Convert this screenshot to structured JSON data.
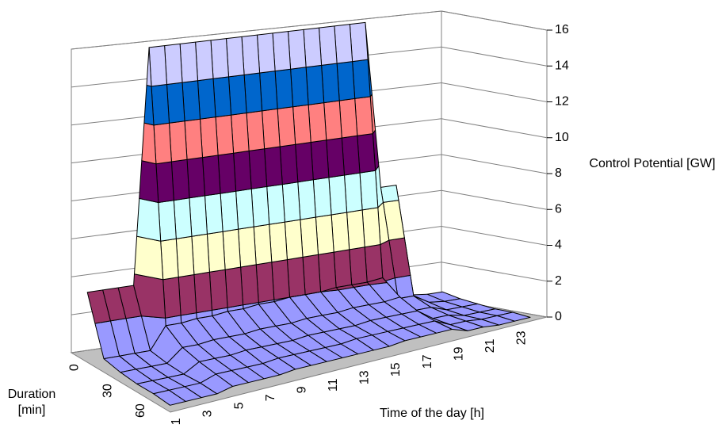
{
  "chart_data": {
    "type": "surface",
    "x_label": "Time of the day [h]",
    "depth_label": "Duration [min]",
    "z_label": "Control Potential [GW]",
    "categories": [
      "1",
      null,
      "3",
      null,
      "5",
      null,
      "7",
      null,
      "9",
      null,
      "11",
      null,
      "13",
      null,
      "15",
      null,
      "17",
      null,
      "19",
      null,
      "21",
      null,
      "23",
      null
    ],
    "depth_categories": [
      "0",
      null,
      "30",
      null,
      "60",
      null
    ],
    "z": [
      [
        3.4,
        3.4,
        3.4,
        3.4,
        16,
        16,
        16,
        16,
        16,
        16,
        16,
        16,
        16,
        16,
        16,
        16,
        16,
        16,
        16,
        6.8,
        6.8,
        0.6,
        0.5,
        0.5
      ],
      [
        0.4,
        0.4,
        0.4,
        0.4,
        1.6,
        1.6,
        1.7,
        1.7,
        1.8,
        1.8,
        1.9,
        1.9,
        2,
        2,
        2,
        2.1,
        2.1,
        2.1,
        2.2,
        0.9,
        0.9,
        0.4,
        0.3,
        0.3
      ],
      [
        0.2,
        0.2,
        0.2,
        0.2,
        0.9,
        0.9,
        1,
        1,
        1,
        1.1,
        1.1,
        1.1,
        1.2,
        1.2,
        1.2,
        1.3,
        1.3,
        1.3,
        1.4,
        0.5,
        0.5,
        0.2,
        0.2,
        0.2
      ],
      [
        0.1,
        0.1,
        0.1,
        0.1,
        0.6,
        0.6,
        0.6,
        0.7,
        0.7,
        0.7,
        0.7,
        0.8,
        0.8,
        0.8,
        0.8,
        0.9,
        0.9,
        0.9,
        0.9,
        0.3,
        0.3,
        0.1,
        0.1,
        0.1
      ],
      [
        0.1,
        0.1,
        0.1,
        0.1,
        0.4,
        0.4,
        0.4,
        0.4,
        0.5,
        0.5,
        0.5,
        0.5,
        0.5,
        0.6,
        0.6,
        0.6,
        0.6,
        0.6,
        0.6,
        0.2,
        0.2,
        0.1,
        0.1,
        0.1
      ],
      [
        0,
        0,
        0,
        0,
        0.2,
        0.2,
        0.2,
        0.2,
        0.3,
        0.3,
        0.3,
        0.3,
        0.3,
        0.3,
        0.3,
        0.4,
        0.4,
        0.4,
        0.4,
        0.1,
        0.1,
        0,
        0,
        0
      ]
    ],
    "zlim": [
      0,
      16
    ],
    "zticks": [
      0,
      2,
      4,
      6,
      8,
      10,
      12,
      14,
      16
    ],
    "band_colors": [
      "#9999ff",
      "#993366",
      "#ffffcc",
      "#ccffff",
      "#660066",
      "#ff8080",
      "#0066cc",
      "#ccccff"
    ],
    "grid": true
  }
}
